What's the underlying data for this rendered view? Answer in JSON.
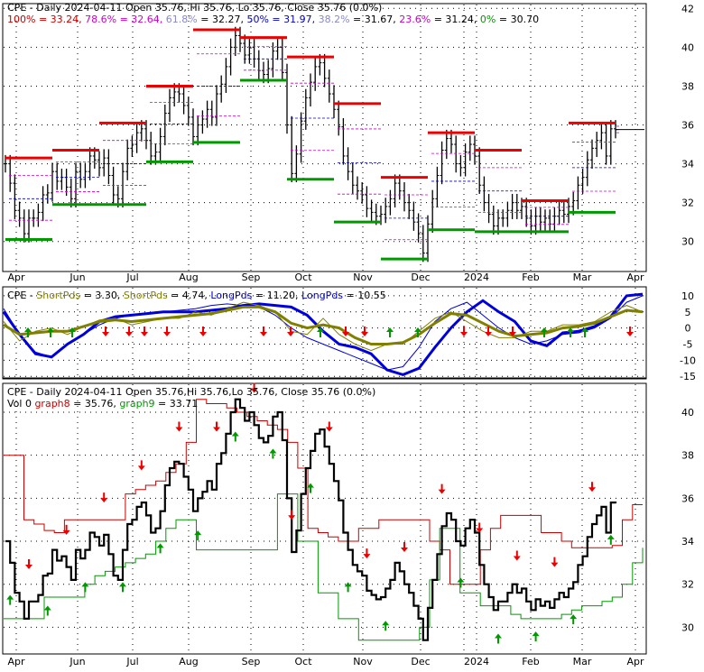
{
  "chart_data": [
    {
      "type": "line",
      "title": "CPE - Daily 2024-04-11 Open 35.76, Hi 35.76, Lo 35.76, Close 35.76 (0.0%)",
      "fib_legend": [
        {
          "text": "100% = 33.24,",
          "color": "#cc0000"
        },
        {
          "text": " 78.6% = 32.64,",
          "color": "#cc00cc"
        },
        {
          "text": " 61.8%",
          "color": "#8888cc"
        },
        {
          "text": " = 32.27,",
          "color": "#000000"
        },
        {
          "text": " 50% = 31.97,",
          "color": "#0000cc"
        },
        {
          "text": " 38.2%",
          "color": "#8888cc"
        },
        {
          "text": " = 31.67,",
          "color": "#000000"
        },
        {
          "text": " 23.6%",
          "color": "#cc00cc"
        },
        {
          "text": " = 31.24,",
          "color": "#000000"
        },
        {
          "text": " 0%",
          "color": "#009900"
        },
        {
          "text": " = 30.70",
          "color": "#000000"
        }
      ],
      "yticks": [
        "42",
        "40",
        "38",
        "36",
        "34",
        "32",
        "30"
      ],
      "ylim": [
        28.5,
        42.2
      ],
      "x_labels": [
        "Apr",
        "Jun",
        "Jul",
        "Aug",
        "Sep",
        "Oct",
        "Nov",
        "Dec",
        "2024",
        "Feb",
        "Mar",
        "Apr"
      ],
      "close": [
        34.0,
        33.0,
        31.6,
        31.2,
        30.4,
        31.2,
        31.2,
        31.5,
        32.4,
        32.5,
        33.6,
        33.1,
        33.3,
        32.8,
        32.2,
        33.6,
        33.2,
        33.6,
        34.4,
        34.2,
        33.8,
        34.3,
        33.4,
        32.4,
        32.2,
        33.6,
        34.8,
        35.0,
        35.6,
        35.8,
        35.2,
        34.4,
        34.6,
        35.4,
        36.6,
        37.4,
        37.7,
        37.6,
        37.0,
        36.4,
        35.4,
        36.0,
        36.3,
        36.8,
        36.4,
        37.6,
        38.1,
        39.0,
        40.0,
        40.6,
        40.2,
        39.6,
        40.0,
        39.4,
        38.8,
        38.6,
        38.9,
        39.8,
        40.0,
        38.7,
        36.0,
        33.5,
        34.5,
        36.2,
        37.4,
        38.2,
        39.0,
        39.2,
        38.4,
        37.6,
        36.8,
        35.9,
        34.4,
        33.6,
        32.9,
        32.6,
        32.4,
        31.7,
        31.5,
        31.3,
        31.4,
        31.8,
        32.2,
        33.0,
        32.6,
        32.0,
        31.6,
        31.0,
        30.4,
        29.4,
        30.9,
        32.2,
        33.4,
        34.7,
        35.3,
        35.0,
        34.0,
        33.8,
        34.6,
        35.0,
        34.4,
        32.9,
        32.0,
        31.4,
        30.8,
        31.2,
        31.2,
        31.6,
        32.0,
        31.6,
        31.8,
        31.2,
        30.8,
        31.3,
        31.0,
        31.2,
        30.9,
        31.3,
        31.6,
        31.4,
        31.8,
        32.1,
        32.9,
        33.3,
        34.2,
        34.8,
        35.2,
        35.6,
        34.4,
        35.8,
        35.76
      ]
    },
    {
      "type": "line",
      "title_parts": [
        {
          "text": "CPE - ",
          "color": "#000000"
        },
        {
          "text": "ShortPds",
          "color": "#808000"
        },
        {
          "text": " = 3.30, ",
          "color": "#000000"
        },
        {
          "text": "ShortPds",
          "color": "#808000"
        },
        {
          "text": " = 4.74, ",
          "color": "#000000"
        },
        {
          "text": "LongPds",
          "color": "#0000cc"
        },
        {
          "text": " = 11.20, ",
          "color": "#000000"
        },
        {
          "text": "LongPds",
          "color": "#0000cc"
        },
        {
          "text": " = 10.55",
          "color": "#000000"
        }
      ],
      "yticks": [
        "10",
        "5",
        "0",
        "-5",
        "-10",
        "-15"
      ],
      "ylim": [
        -15.5,
        12.5
      ],
      "series": [
        {
          "color": "#0000dd",
          "values": [
            5.0,
            -2.0,
            -8.0,
            -9.0,
            -5.0,
            -2.0,
            2.0,
            3.5,
            4.0,
            4.5,
            5.0,
            5.0,
            5.0,
            5.5,
            6.0,
            7.0,
            7.5,
            7.0,
            6.5,
            4.0,
            -1.0,
            -5.0,
            -6.0,
            -8.0,
            -13.0,
            -14.5,
            -12.5,
            -6.0,
            0.0,
            5.0,
            8.5,
            5.0,
            2.0,
            -4.0,
            -5.5,
            -1.5,
            -1.0,
            0.5,
            3.5,
            10.0,
            10.5
          ]
        },
        {
          "color": "#0000dd",
          "values": [
            6.0,
            -2.0,
            -7.5,
            -9.0,
            -5.0,
            -2.0,
            1.0,
            3.0,
            4.0,
            4.5,
            5.0,
            5.5,
            6.0,
            7.0,
            7.5,
            7.0,
            6.5,
            4.0,
            0.0,
            -3.0,
            -5.0,
            -7.0,
            -9.0,
            -11.0,
            -13.0,
            -12.0,
            -6.0,
            2.0,
            6.0,
            8.0,
            4.0,
            0.0,
            -3.0,
            -5.0,
            -4.0,
            -2.0,
            -1.5,
            0.0,
            3.0,
            8.0,
            10.0
          ]
        },
        {
          "color": "#808000",
          "values": [
            2.0,
            -4.0,
            -1.0,
            0.0,
            -2.0,
            0.5,
            2.5,
            3.0,
            1.0,
            2.0,
            3.0,
            3.0,
            5.0,
            4.0,
            6.0,
            8.0,
            7.0,
            5.0,
            -1.0,
            -2.0,
            3.0,
            -2.0,
            -5.0,
            -7.0,
            -5.0,
            -5.0,
            -1.0,
            3.0,
            5.0,
            2.0,
            -1.0,
            -3.0,
            -3.0,
            -1.0,
            -1.0,
            1.0,
            1.0,
            2.0,
            5.0,
            7.0,
            5.0
          ]
        },
        {
          "color": "#808000",
          "values": [
            1.0,
            -2.0,
            -1.5,
            -1.0,
            -1.0,
            0.5,
            2.0,
            2.5,
            2.0,
            2.5,
            3.0,
            3.5,
            4.0,
            4.5,
            5.5,
            6.5,
            6.5,
            5.0,
            1.5,
            0.0,
            1.0,
            0.0,
            -3.0,
            -5.0,
            -5.0,
            -4.5,
            -2.0,
            1.5,
            4.5,
            4.0,
            1.5,
            -1.0,
            -2.5,
            -2.0,
            -1.5,
            0.0,
            0.5,
            1.5,
            3.5,
            5.5,
            5.0
          ]
        }
      ],
      "x_labels": [
        "Apr",
        "Jun",
        "Jul",
        "Aug",
        "Sep",
        "Oct",
        "Nov",
        "Dec",
        "2024",
        "Feb",
        "Mar",
        "Apr"
      ]
    },
    {
      "type": "line",
      "title": "CPE - Daily 2024-04-11 Open 35.76,Hi 35.76,Lo 35.76, Close 35.76 (0.0%)",
      "legend_parts": [
        {
          "text": "Vol 0 ",
          "color": "#000000"
        },
        {
          "text": "graph8",
          "color": "#cc0000"
        },
        {
          "text": " = 35.76, ",
          "color": "#000000"
        },
        {
          "text": "graph9",
          "color": "#009900"
        },
        {
          "text": " = 33.71",
          "color": "#000000"
        }
      ],
      "yticks": [
        "40",
        "38",
        "36",
        "34",
        "32",
        "30"
      ],
      "ylim": [
        28.8,
        41.3
      ],
      "series": [
        {
          "name": "graph8",
          "color": "#cc0000",
          "values": [
            38.0,
            38.0,
            35.0,
            34.8,
            34.5,
            34.4,
            35.0,
            35.0,
            35.0,
            35.0,
            35.0,
            35.0,
            36.2,
            36.4,
            36.6,
            36.8,
            37.2,
            37.6,
            38.6,
            40.6,
            40.4,
            40.4,
            40.2,
            40.0,
            39.8,
            39.6,
            39.4,
            39.2,
            38.6,
            37.4,
            34.6,
            34.4,
            34.2,
            34.0,
            34.0,
            34.6,
            34.6,
            35.0,
            35.0,
            35.0,
            35.0,
            35.0,
            34.0,
            33.6,
            32.0,
            32.0,
            32.0,
            33.6,
            34.6,
            35.2,
            35.2,
            35.2,
            35.2,
            34.4,
            34.4,
            34.0,
            33.7,
            33.7,
            33.7,
            33.7,
            33.8,
            35.0,
            35.7,
            35.7
          ]
        },
        {
          "name": "graph9",
          "color": "#009900",
          "values": [
            30.4,
            30.4,
            30.4,
            30.4,
            31.4,
            31.4,
            31.4,
            31.4,
            32.0,
            32.4,
            32.6,
            32.8,
            33.0,
            33.2,
            33.4,
            34.0,
            34.6,
            35.0,
            35.0,
            33.6,
            33.6,
            33.6,
            33.6,
            33.6,
            33.6,
            33.6,
            33.6,
            36.2,
            36.2,
            34.0,
            34.0,
            31.6,
            31.6,
            30.4,
            30.4,
            29.4,
            29.4,
            29.4,
            29.4,
            29.4,
            29.4,
            30.0,
            32.2,
            34.6,
            34.6,
            31.6,
            31.6,
            31.0,
            31.0,
            31.0,
            30.6,
            30.4,
            30.4,
            30.4,
            30.4,
            30.6,
            30.8,
            31.0,
            31.0,
            31.2,
            31.4,
            32.0,
            33.0,
            33.7
          ]
        }
      ],
      "x_labels": [
        "Apr",
        "Jun",
        "Jul",
        "Aug",
        "Sep",
        "Oct",
        "Nov",
        "Dec",
        "2024",
        "Feb",
        "Mar",
        "Apr"
      ]
    }
  ]
}
